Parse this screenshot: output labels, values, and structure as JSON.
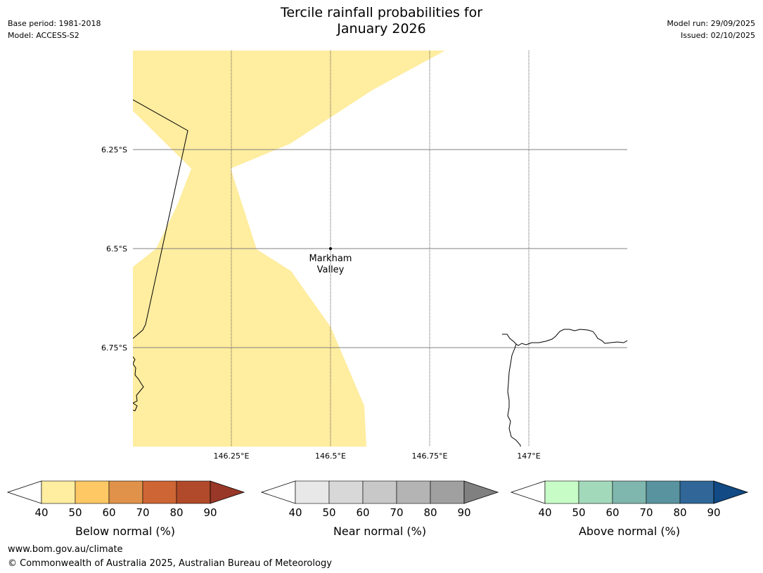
{
  "header": {
    "title_line1": "Tercile rainfall probabilities for",
    "title_line2": "January 2026",
    "base_period": "Base period: 1981-2018",
    "model": "Model: ACCESS-S2",
    "model_run": "Model run: 29/09/2025",
    "issued": "Issued: 02/10/2025"
  },
  "map": {
    "lat_labels": [
      "6.25°S",
      "6.5°S",
      "6.75°S"
    ],
    "lon_labels": [
      "146.25°E",
      "146.5°E",
      "146.75°E",
      "147°E"
    ],
    "place": {
      "line1": "Markham",
      "line2": "Valley"
    },
    "fill_color": "#ffeda0"
  },
  "legends": [
    {
      "name": "below-normal",
      "label": "Below normal (%)",
      "ticks": [
        "40",
        "50",
        "60",
        "70",
        "80",
        "90"
      ],
      "colors": [
        "#ffeda0",
        "#fec965",
        "#e0924a",
        "#cd6534",
        "#b04a2a",
        "#993728"
      ]
    },
    {
      "name": "near-normal",
      "label": "Near normal (%)",
      "ticks": [
        "40",
        "50",
        "60",
        "70",
        "80",
        "90"
      ],
      "colors": [
        "#e8e8e8",
        "#d8d8d8",
        "#c8c8c8",
        "#b4b4b4",
        "#a0a0a0",
        "#808080"
      ]
    },
    {
      "name": "above-normal",
      "label": "Above normal (%)",
      "ticks": [
        "40",
        "50",
        "60",
        "70",
        "80",
        "90"
      ],
      "colors": [
        "#c7fcc7",
        "#a3d9bb",
        "#7fb6ae",
        "#5a93a0",
        "#306698",
        "#114a85"
      ]
    }
  ],
  "footer": {
    "url": "www.bom.gov.au/climate",
    "copyright": "© Commonwealth of Australia 2025, Australian Bureau of Meteorology"
  }
}
